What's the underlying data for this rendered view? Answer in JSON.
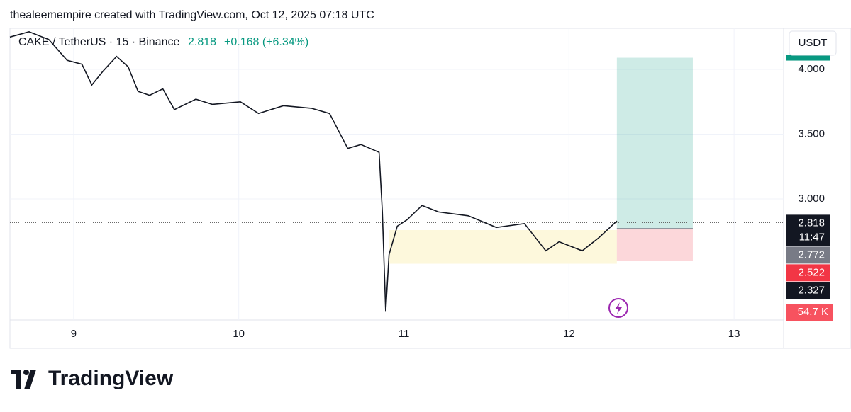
{
  "header": {
    "text": "thealeemempire created with TradingView.com, Oct 12, 2025 07:18 UTC"
  },
  "chart_data": {
    "type": "line",
    "symbol": "CAKE / TetherUS · 15 · Binance",
    "last": 2.818,
    "change": "+0.168 (+6.34%)",
    "currency": "USDT",
    "x": [
      8.614,
      8.73,
      8.85,
      8.96,
      9.05,
      9.11,
      9.18,
      9.26,
      9.33,
      9.39,
      9.46,
      9.54,
      9.61,
      9.74,
      9.84,
      10.01,
      10.12,
      10.27,
      10.44,
      10.55,
      10.66,
      10.74,
      10.85,
      10.87,
      10.89,
      10.91,
      10.96,
      11.02,
      11.11,
      11.21,
      11.39,
      11.56,
      11.73,
      11.86,
      11.94,
      12.08,
      12.18,
      12.29
    ],
    "values": [
      4.25,
      4.29,
      4.23,
      4.07,
      4.04,
      3.88,
      3.99,
      4.1,
      4.02,
      3.83,
      3.8,
      3.85,
      3.69,
      3.77,
      3.73,
      3.75,
      3.66,
      3.72,
      3.7,
      3.66,
      3.39,
      3.42,
      3.36,
      2.9,
      2.13,
      2.57,
      2.79,
      2.84,
      2.95,
      2.9,
      2.87,
      2.78,
      2.81,
      2.6,
      2.67,
      2.6,
      2.7,
      2.83
    ],
    "color": "#131722",
    "xlim": [
      8.614,
      13.3
    ],
    "ylim": [
      2.066,
      4.317
    ],
    "xticks": [
      9,
      10,
      11,
      12,
      13
    ],
    "yticks": [
      {
        "value": 3,
        "label": "3.000"
      },
      {
        "value": 3.5,
        "label": "3.500"
      },
      {
        "value": 4,
        "label": "4.000"
      }
    ],
    "countdown": "11:47",
    "price_tags": [
      2.818,
      2.772,
      2.522,
      2.327
    ],
    "position": {
      "x": [
        12.29,
        12.75
      ],
      "entry": 2.772,
      "stop": 2.522,
      "target": 4.09
    },
    "zone": {
      "x": [
        10.91,
        12.29
      ],
      "y": [
        2.5,
        2.76
      ]
    },
    "volume_label": "54.7 K"
  },
  "brand": "TradingView"
}
